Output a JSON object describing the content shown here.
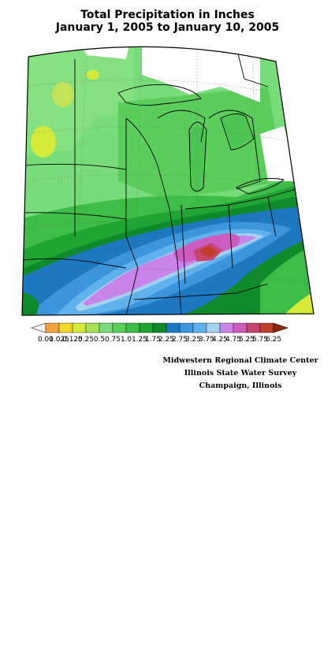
{
  "title": {
    "line1": "Total Precipitation in Inches",
    "line2": "January 1, 2005 to January 10, 2005"
  },
  "legend": {
    "ticks": [
      "0.01",
      "0.025",
      "0.125",
      "0.25",
      "0.5",
      "0.75",
      "1.0",
      "1.25",
      "1.75",
      "2.25",
      "2.75",
      "3.25",
      "3.75",
      "4.25",
      "4.75",
      "5.25",
      "5.75",
      "6.25"
    ],
    "colors": [
      "#f0a53c",
      "#f5d62a",
      "#d6ea3a",
      "#a8e05a",
      "#79dc7a",
      "#5acd5a",
      "#3dbd48",
      "#1ea532",
      "#0f8a2a",
      "#1e78c0",
      "#3b96dd",
      "#5fb2ec",
      "#a4d2ee",
      "#c884e8",
      "#cc5cc0",
      "#c8446e",
      "#c03e2a"
    ]
  },
  "credits": {
    "line1": "Midwestern Regional Climate Center",
    "line2": "Illinois State Water Survey",
    "line3": "Champaign, Illinois"
  }
}
